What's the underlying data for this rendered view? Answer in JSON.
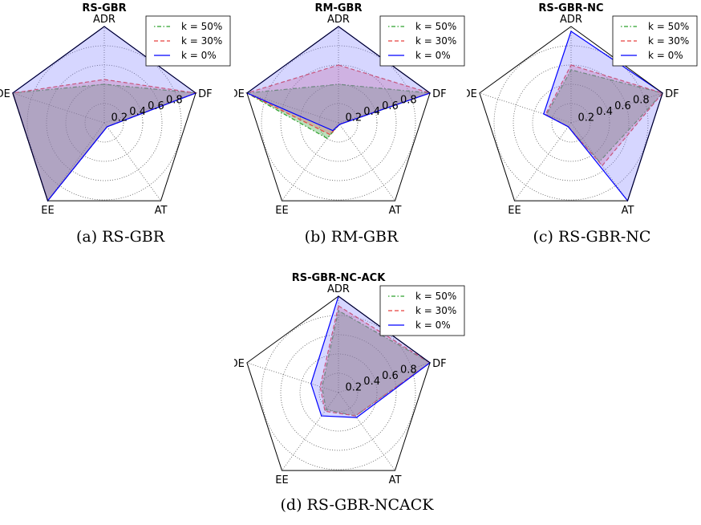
{
  "chart_data": [
    {
      "type": "radar",
      "title": "RS-GBR",
      "caption": "(a) RS-GBR",
      "axes": [
        "ADR",
        "DF",
        "AT",
        "EE",
        "DE"
      ],
      "radial_ticks": [
        "0.2",
        "0.4",
        "0.6",
        "0.8"
      ],
      "rlim": [
        0,
        1
      ],
      "grid": true,
      "legend_position": "top-right",
      "series": [
        {
          "name": "k = 50%",
          "color": "#2ca02c",
          "fill": "#2ca02c",
          "line": "dashdot",
          "values": [
            0.4,
            1.0,
            0.05,
            1.0,
            1.0
          ]
        },
        {
          "name": "k = 30%",
          "color": "#e8413f",
          "fill": "#e05c7a",
          "line": "dashed",
          "values": [
            0.45,
            1.0,
            0.05,
            1.0,
            1.0
          ]
        },
        {
          "name": "k = 0%",
          "color": "#0000ff",
          "fill": "#7f7fff",
          "line": "solid",
          "values": [
            1.0,
            1.0,
            0.05,
            1.0,
            1.0
          ]
        }
      ]
    },
    {
      "type": "radar",
      "title": "RM-GBR",
      "caption": "(b) RM-GBR",
      "axes": [
        "ADR",
        "DF",
        "AT",
        "EE",
        "DE"
      ],
      "radial_ticks": [
        "0.2",
        "0.4",
        "0.6",
        "0.8"
      ],
      "rlim": [
        0,
        1
      ],
      "grid": true,
      "legend_position": "top-right",
      "series": [
        {
          "name": "k = 50%",
          "color": "#2ca02c",
          "fill": "#2ca02c",
          "line": "dashdot",
          "values": [
            0.4,
            1.0,
            0.02,
            0.2,
            1.0
          ]
        },
        {
          "name": "k = 30%",
          "color": "#e8413f",
          "fill": "#e05c7a",
          "line": "dashed",
          "values": [
            0.6,
            1.0,
            0.02,
            0.15,
            1.0
          ]
        },
        {
          "name": "k = 0%",
          "color": "#0000ff",
          "fill": "#7f7fff",
          "line": "solid",
          "values": [
            1.0,
            1.0,
            0.02,
            0.1,
            1.0
          ]
        }
      ]
    },
    {
      "type": "radar",
      "title": "RS-GBR-NC",
      "caption": "(c) RS-GBR-NC",
      "axes": [
        "ADR",
        "DF",
        "AT",
        "EE",
        "DE"
      ],
      "radial_ticks": [
        "0.2",
        "0.4",
        "0.6",
        "0.8"
      ],
      "rlim": [
        0,
        1
      ],
      "grid": true,
      "legend_position": "top-right",
      "series": [
        {
          "name": "k = 50%",
          "color": "#2ca02c",
          "fill": "#2ca02c",
          "line": "dashdot",
          "values": [
            0.55,
            1.0,
            0.5,
            0.05,
            0.27
          ]
        },
        {
          "name": "k = 30%",
          "color": "#e8413f",
          "fill": "#e05c7a",
          "line": "dashed",
          "values": [
            0.6,
            1.0,
            0.55,
            0.05,
            0.28
          ]
        },
        {
          "name": "k = 0%",
          "color": "#0000ff",
          "fill": "#7f7fff",
          "line": "solid",
          "values": [
            0.95,
            1.0,
            1.0,
            0.05,
            0.3
          ]
        }
      ]
    },
    {
      "type": "radar",
      "title": "RS-GBR-NC-ACK",
      "caption": "(d) RS-GBR-NCACK",
      "axes": [
        "ADR",
        "DF",
        "AT",
        "EE",
        "DE"
      ],
      "radial_ticks": [
        "0.2",
        "0.4",
        "0.6",
        "0.8"
      ],
      "rlim": [
        0,
        1
      ],
      "grid": true,
      "legend_position": "top-right",
      "series": [
        {
          "name": "k = 50%",
          "color": "#2ca02c",
          "fill": "#2ca02c",
          "line": "dashdot",
          "values": [
            0.85,
            1.0,
            0.3,
            0.22,
            0.18
          ]
        },
        {
          "name": "k = 30%",
          "color": "#e8413f",
          "fill": "#e05c7a",
          "line": "dashed",
          "values": [
            0.9,
            1.0,
            0.3,
            0.24,
            0.2
          ]
        },
        {
          "name": "k = 0%",
          "color": "#0000ff",
          "fill": "#7f7fff",
          "line": "solid",
          "values": [
            1.0,
            1.0,
            0.32,
            0.3,
            0.3
          ]
        }
      ]
    }
  ]
}
